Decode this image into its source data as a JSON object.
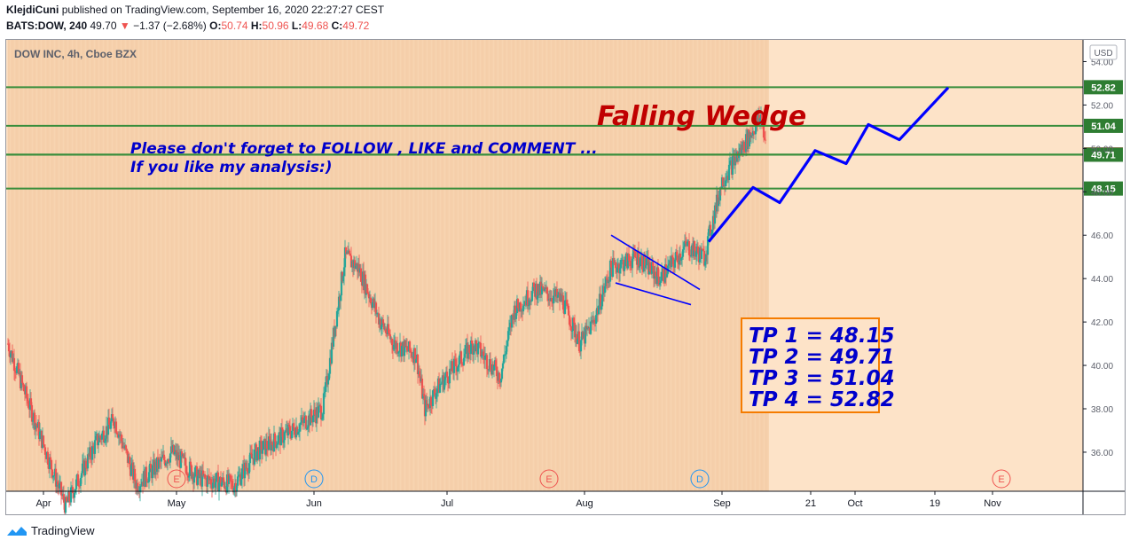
{
  "header": {
    "author": "KlejdiCuni",
    "published_text": "published on TradingView.com, September 16, 2020 22:27:27 CEST",
    "symbol": "BATS:DOW, 240",
    "last": "49.70",
    "change_arrow": "▼",
    "change": "−1.37 (−2.68%)",
    "open_label": "O:",
    "open": "50.74",
    "high_label": "H:",
    "high": "50.96",
    "low_label": "L:",
    "low": "49.68",
    "close_label": "C:",
    "close": "49.72"
  },
  "chart": {
    "instrument_label": "DOW INC, 4h, Cboe BZX",
    "currency": "USD",
    "headline": "Falling Wedge",
    "note_line1": "Please don't forget  to FOLLOW , LIKE and COMMENT ...",
    "note_line2": "If you like my analysis:)",
    "tp_lines": [
      "TP 1 = 48.15",
      "TP 2 = 49.71",
      "TP 3 = 51.04",
      "TP 4 = 52.82"
    ],
    "colors": {
      "bull": "#26a69a",
      "bear": "#ef5350",
      "level_line": "#388e3c",
      "projection": "#0000ff",
      "headline": "#c00000",
      "note": "#0000cc",
      "background": "#fde3c8",
      "tp_border": "#f57c00"
    }
  },
  "footer": {
    "brand": "TradingView"
  },
  "chart_data": {
    "type": "candlestick",
    "y_axis": {
      "side": "right",
      "ticks": [
        36.0,
        38.0,
        40.0,
        42.0,
        44.0,
        46.0,
        48.0,
        50.0,
        52.0,
        54.0
      ],
      "range": [
        34.2,
        55.0
      ]
    },
    "x_axis": {
      "labels": [
        "Apr",
        "May",
        "Jun",
        "Jul",
        "Aug",
        "Sep",
        "21",
        "Oct",
        "19",
        "Nov"
      ]
    },
    "levels": [
      {
        "label": "52.82",
        "value": 52.82
      },
      {
        "label": "51.04",
        "value": 51.04
      },
      {
        "label": "49.72",
        "value": 49.72,
        "current": true
      },
      {
        "label": "49.71",
        "value": 49.71
      },
      {
        "label": "48.15",
        "value": 48.15
      }
    ],
    "price_path": [
      [
        "Mar 24",
        41.0
      ],
      [
        "Mar 27",
        39.2
      ],
      [
        "Apr 6",
        33.5
      ],
      [
        "Apr 13",
        36.5
      ],
      [
        "Apr 17",
        37.5
      ],
      [
        "Apr 22",
        34.5
      ],
      [
        "Apr 30",
        36.0
      ],
      [
        "May 6",
        34.8
      ],
      [
        "May 14",
        34.5
      ],
      [
        "May 19",
        36.0
      ],
      [
        "May 27",
        37.0
      ],
      [
        "Jun 3",
        38.0
      ],
      [
        "Jun 8",
        45.0
      ],
      [
        "Jun 11",
        44.5
      ],
      [
        "Jun 16",
        42.0
      ],
      [
        "Jun 19",
        41.0
      ],
      [
        "Jun 24",
        40.5
      ],
      [
        "Jun 26",
        38.0
      ],
      [
        "Jun 29",
        39.0
      ],
      [
        "Jul 7",
        41.0
      ],
      [
        "Jul 13",
        39.5
      ],
      [
        "Jul 16",
        42.5
      ],
      [
        "Jul 21",
        43.5
      ],
      [
        "Jul 27",
        43.0
      ],
      [
        "Jul 31",
        41.0
      ],
      [
        "Aug 3",
        42.0
      ],
      [
        "Aug 7",
        44.5
      ],
      [
        "Aug 13",
        45.0
      ],
      [
        "Aug 18",
        44.0
      ],
      [
        "Aug 24",
        45.5
      ],
      [
        "Aug 28",
        45.0
      ],
      [
        "Sep 1",
        48.5
      ],
      [
        "Sep 7",
        50.5
      ],
      [
        "Sep 10",
        51.5
      ],
      [
        "Sep 11",
        49.72
      ]
    ],
    "annotations": {
      "wedge_upper": [
        [
          "Aug 7",
          46.0
        ],
        [
          "Aug 27",
          43.5
        ]
      ],
      "wedge_lower": [
        [
          "Aug 8",
          43.8
        ],
        [
          "Aug 25",
          42.8
        ]
      ],
      "projection_path": [
        [
          "Aug 29",
          45.7
        ],
        [
          "Sep 8",
          48.2
        ],
        [
          "Sep 14",
          47.5
        ],
        [
          "Sep 22",
          49.9
        ],
        [
          "Sep 29",
          49.3
        ],
        [
          "Oct 4",
          51.1
        ],
        [
          "Oct 11",
          50.4
        ],
        [
          "Oct 22",
          52.8
        ]
      ],
      "event_markers": [
        {
          "label": "E",
          "date": "May 1"
        },
        {
          "label": "D",
          "date": "Jun 1"
        },
        {
          "label": "E",
          "date": "Jul 24"
        },
        {
          "label": "D",
          "date": "Aug 27"
        },
        {
          "label": "E",
          "date": "Nov 3"
        }
      ]
    },
    "unit": "USD"
  }
}
